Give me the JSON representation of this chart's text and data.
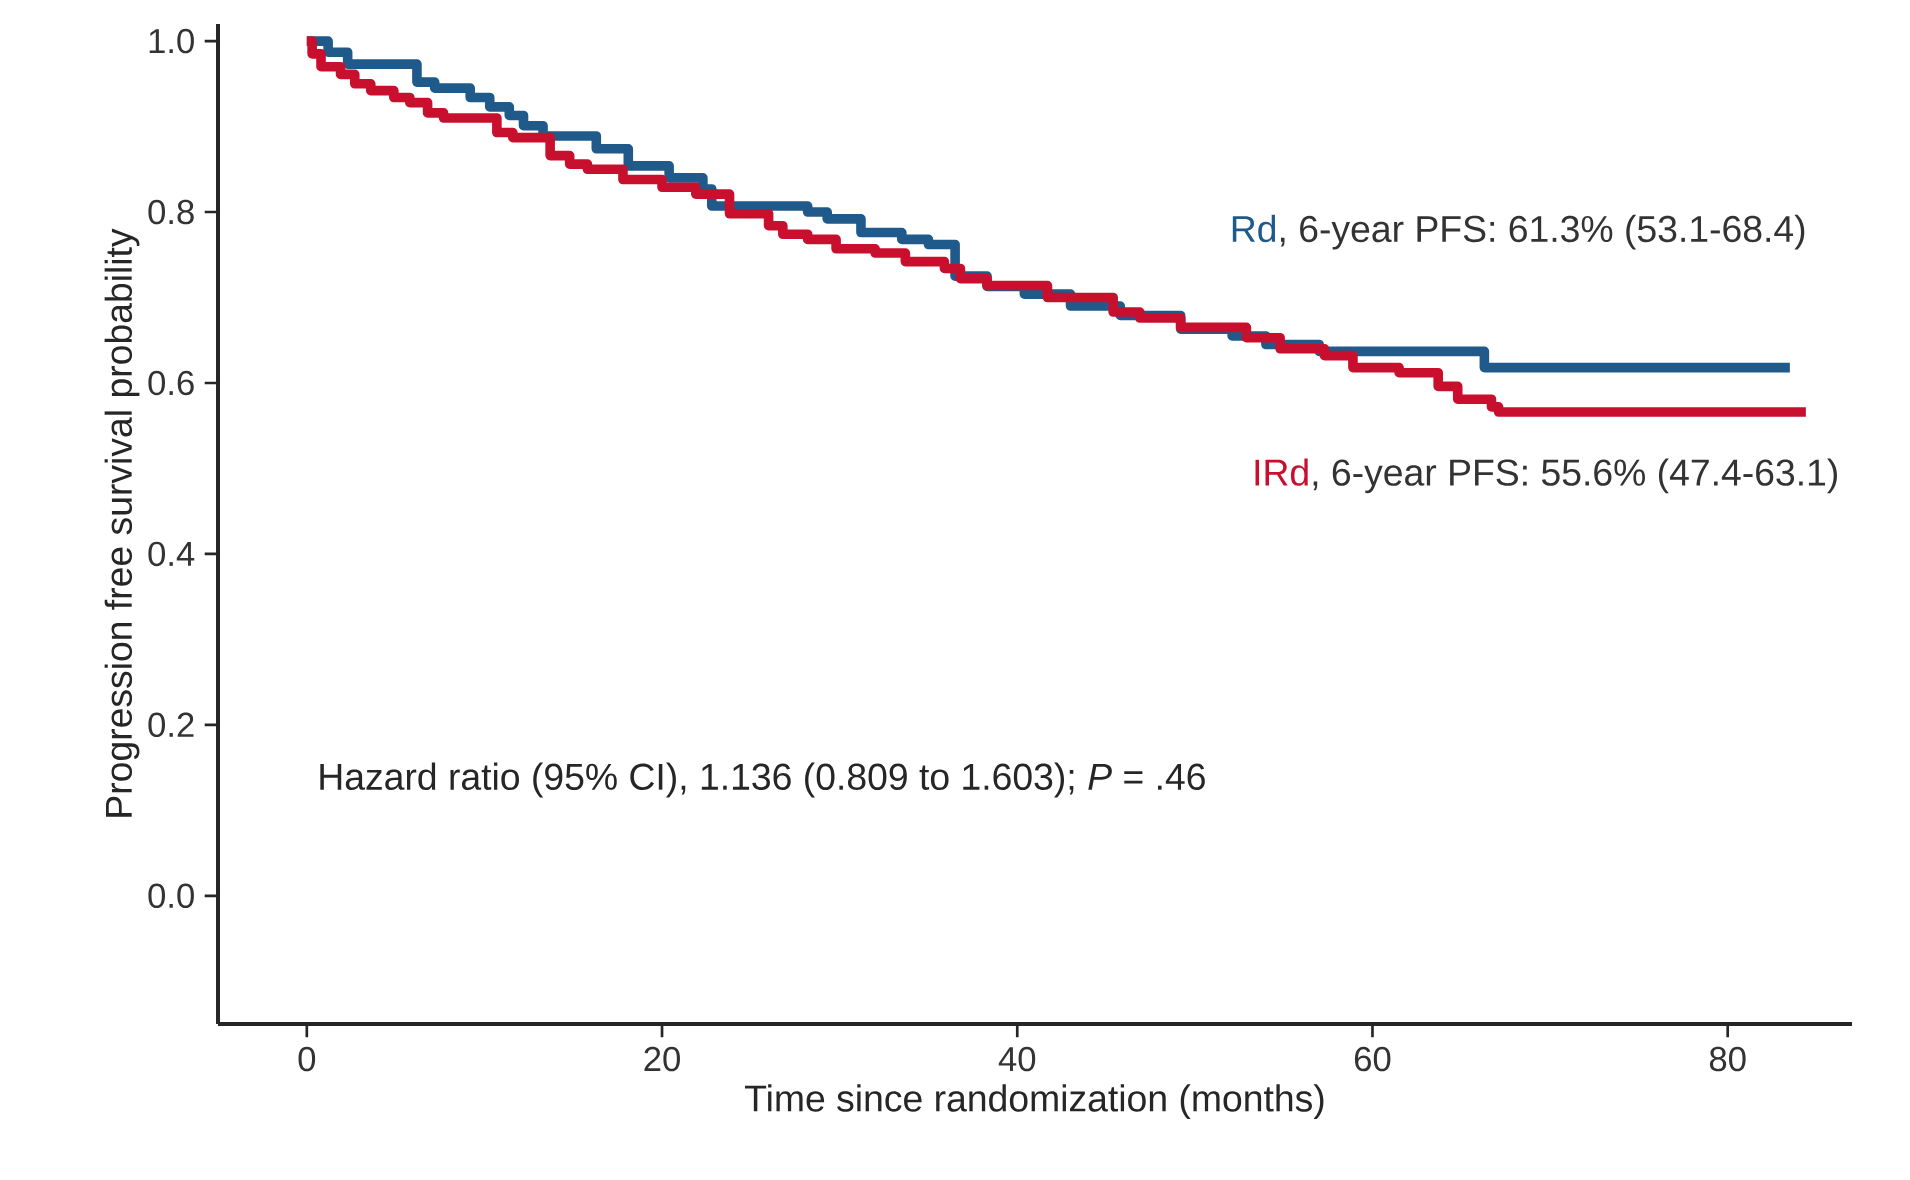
{
  "chart_data": {
    "type": "step",
    "xlabel": "Time since randomization (months)",
    "ylabel": "Progression free survival probability",
    "xlim": [
      -5,
      87
    ],
    "ylim": [
      -0.15,
      1.02
    ],
    "xticks": [
      0,
      20,
      40,
      60,
      80
    ],
    "yticks": [
      {
        "value": 0,
        "label": "0.0"
      },
      {
        "value": 0.2,
        "label": "0.2"
      },
      {
        "value": 0.4,
        "label": "0.4"
      },
      {
        "value": 0.6,
        "label": "0.6"
      },
      {
        "value": 0.8,
        "label": "0.8"
      },
      {
        "value": 1,
        "label": "1.0"
      }
    ],
    "grid": false,
    "legend": false,
    "series": [
      {
        "name": "Rd",
        "color": "#1f5a8b",
        "x": [
          0,
          1.2,
          2.3,
          6.2,
          7.2,
          9.2,
          10.3,
          11.4,
          12.2,
          13.3,
          16.3,
          18.1,
          20.4,
          22.3,
          22.8,
          28.2,
          29.3,
          31.2,
          33.5,
          35,
          36.5,
          38.3,
          40.4,
          43,
          45.8,
          49.2,
          52.1,
          54,
          57,
          66.3,
          83.5
        ],
        "values": [
          1.0,
          0.987,
          0.973,
          0.952,
          0.945,
          0.934,
          0.923,
          0.913,
          0.901,
          0.889,
          0.874,
          0.854,
          0.84,
          0.827,
          0.807,
          0.8,
          0.792,
          0.776,
          0.768,
          0.762,
          0.725,
          0.713,
          0.704,
          0.69,
          0.679,
          0.663,
          0.655,
          0.645,
          0.637,
          0.618,
          0.618
        ]
      },
      {
        "name": "IRd",
        "color": "#c8102e",
        "x": [
          0,
          0.3,
          0.8,
          1.9,
          2.7,
          3.6,
          4.9,
          5.8,
          6.8,
          7.7,
          10.7,
          11.6,
          13.7,
          14.8,
          15.8,
          17.8,
          20,
          21.9,
          23.8,
          26,
          26.8,
          28.2,
          29.8,
          32,
          33.7,
          35.9,
          36.8,
          38.3,
          41.7,
          45.4,
          46.9,
          49.2,
          52.9,
          54.8,
          57.3,
          58.9,
          61.5,
          63.7,
          64.8,
          66.7,
          67.1,
          84.4
        ],
        "values": [
          1.0,
          0.985,
          0.97,
          0.961,
          0.95,
          0.942,
          0.934,
          0.928,
          0.916,
          0.91,
          0.893,
          0.887,
          0.866,
          0.856,
          0.85,
          0.838,
          0.829,
          0.821,
          0.798,
          0.784,
          0.774,
          0.768,
          0.757,
          0.752,
          0.742,
          0.734,
          0.722,
          0.714,
          0.7,
          0.683,
          0.676,
          0.665,
          0.653,
          0.64,
          0.632,
          0.618,
          0.612,
          0.596,
          0.581,
          0.572,
          0.566,
          0.566
        ]
      }
    ],
    "annotations": [
      ", 6-year PFS: 61.3% (53.1-68.4)",
      ", 6-year PFS: 55.6% (47.4-63.1)",
      "Hazard ratio (95% CI), 1.136 (0.809 to 1.603); *P* = .46"
    ]
  }
}
